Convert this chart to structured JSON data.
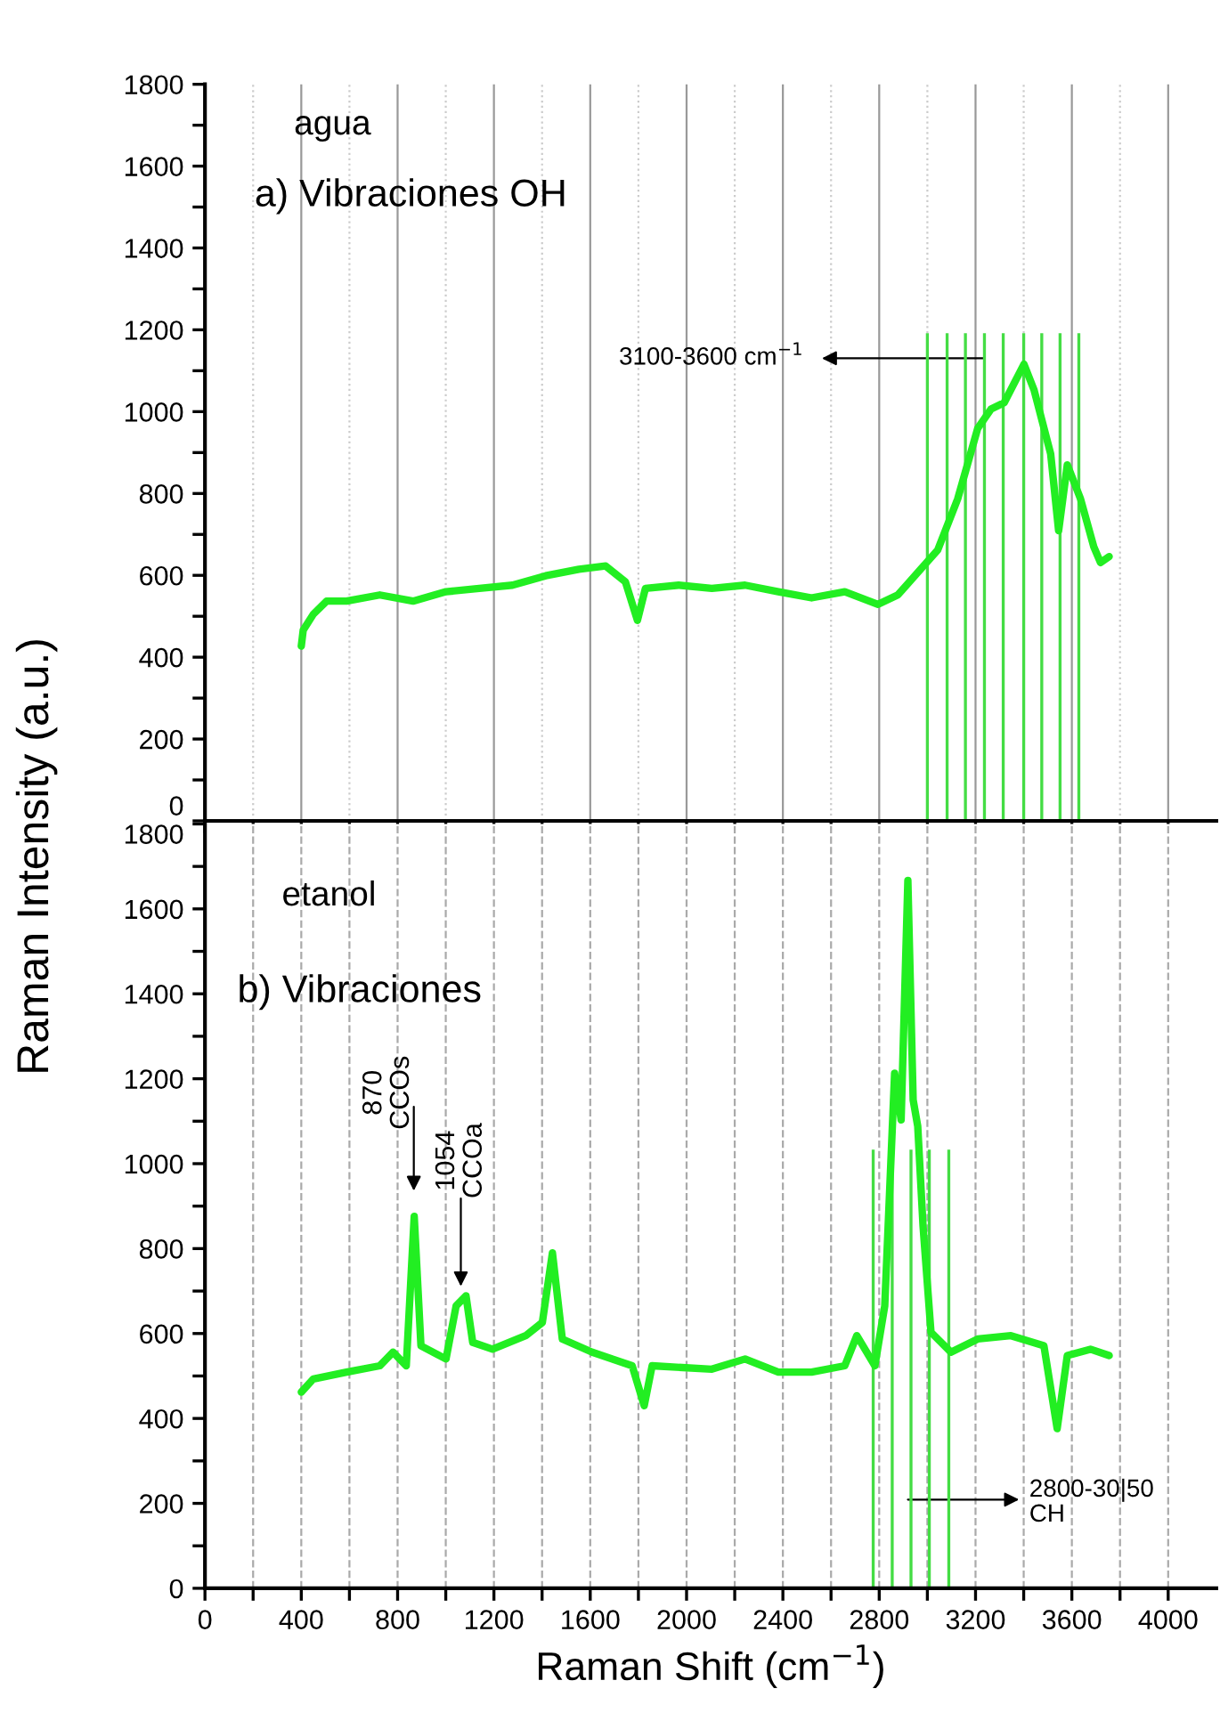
{
  "chart_data": [
    {
      "type": "line",
      "ylabel": "Raman Intensity (a.u.)",
      "annotations": [
        "agua",
        "a) Vibraciones OH",
        "3100-3600 cm$^{−1}$"
      ],
      "x": [
        400,
        408,
        450,
        505,
        588,
        726,
        864,
        1001,
        1139,
        1277,
        1415,
        1553,
        1664,
        1746,
        1796,
        1829,
        1967,
        2105,
        2243,
        2381,
        2519,
        2657,
        2795,
        2877,
        2960,
        3043,
        3126,
        3209,
        3264,
        3319,
        3401,
        3443,
        3512,
        3545,
        3581,
        3636,
        3691,
        3719,
        3755
      ],
      "series": [
        {
          "color": "#22ee22",
          "values": [
            427,
            466,
            505,
            537,
            537,
            552,
            537,
            560,
            568,
            576,
            599,
            615,
            623,
            584,
            490,
            568,
            576,
            568,
            576,
            560,
            545,
            560,
            529,
            552,
            607,
            662,
            787,
            959,
            1006,
            1022,
            1116,
            1053,
            897,
            709,
            870,
            787,
            670,
            631,
            646
          ]
        }
      ],
      "xlim": [
        0,
        4200
      ],
      "ylim": [
        0,
        1800
      ],
      "xticks": [
        0,
        {
          "value": 200,
          "label": null
        },
        400,
        {
          "value": 600,
          "label": null
        },
        800,
        {
          "value": 1000,
          "label": null
        },
        1200,
        {
          "value": 1400,
          "label": null
        },
        1600,
        {
          "value": 1800,
          "label": null
        },
        2000,
        {
          "value": 2200,
          "label": null
        },
        2400,
        {
          "value": 2600,
          "label": null
        },
        2800,
        {
          "value": 3000,
          "label": null
        },
        3200,
        {
          "value": 3400,
          "label": null
        },
        3600,
        {
          "value": 3800,
          "label": null
        },
        4000
      ],
      "yticks": [
        0,
        {
          "value": 100,
          "label": null
        },
        200,
        {
          "value": 300,
          "label": null
        },
        400,
        {
          "value": 500,
          "label": null
        },
        600,
        {
          "value": 700,
          "label": null
        },
        800,
        {
          "value": 900,
          "label": null
        },
        1000,
        {
          "value": 1100,
          "label": null
        },
        1200,
        {
          "value": 1300,
          "label": null
        },
        1400,
        {
          "value": 1500,
          "label": null
        },
        1600,
        {
          "value": 1700,
          "label": null
        },
        1800
      ],
      "tick_labels": "y",
      "grid": "x",
      "ref_lines": [
        {
          "axis": "x",
          "value": 3000,
          "color": "#44dd44"
        },
        {
          "axis": "x",
          "value": 3082,
          "color": "#44dd44"
        },
        {
          "axis": "x",
          "value": 3158,
          "color": "#44dd44"
        },
        {
          "axis": "x",
          "value": 3237,
          "color": "#44dd44"
        },
        {
          "axis": "x",
          "value": 3315,
          "color": "#44dd44"
        },
        {
          "axis": "x",
          "value": 3400,
          "color": "#44dd44"
        },
        {
          "axis": "x",
          "value": 3475,
          "color": "#44dd44"
        },
        {
          "axis": "x",
          "value": 3551,
          "color": "#44dd44"
        },
        {
          "axis": "x",
          "value": 3629,
          "color": "#44dd44"
        }
      ]
    },
    {
      "type": "line",
      "xlabel": "Raman Shift (cm$^{−1}$)",
      "annotations": [
        "etanol",
        "b) Vibraciones",
        "870\nCCOs",
        "1054\nCCOa",
        "2800-30|50\nCH"
      ],
      "x": [
        400,
        450,
        588,
        726,
        781,
        836,
        869,
        897,
        1001,
        1043,
        1084,
        1112,
        1194,
        1332,
        1401,
        1443,
        1484,
        1608,
        1774,
        1824,
        1857,
        2105,
        2243,
        2381,
        2519,
        2657,
        2707,
        2782,
        2823,
        2864,
        2891,
        2919,
        2941,
        2960,
        2982,
        3015,
        3098,
        3209,
        3347,
        3484,
        3539,
        3581,
        3677,
        3755
      ],
      "series": [
        {
          "color": "#22ee22",
          "values": [
            462,
            493,
            509,
            524,
            556,
            524,
            876,
            571,
            540,
            665,
            689,
            579,
            563,
            595,
            626,
            790,
            587,
            556,
            524,
            430,
            524,
            516,
            540,
            509,
            509,
            524,
            595,
            524,
            665,
            1213,
            1103,
            1667,
            1150,
            1088,
            853,
            603,
            556,
            587,
            595,
            571,
            376,
            548,
            563,
            548
          ]
        }
      ],
      "xlim": [
        0,
        4200
      ],
      "ylim": [
        0,
        1800
      ],
      "xticks": [
        0,
        {
          "value": 200,
          "label": null
        },
        400,
        {
          "value": 600,
          "label": null
        },
        800,
        {
          "value": 1000,
          "label": null
        },
        1200,
        {
          "value": 1400,
          "label": null
        },
        1600,
        {
          "value": 1800,
          "label": null
        },
        2000,
        {
          "value": 2200,
          "label": null
        },
        2400,
        {
          "value": 2600,
          "label": null
        },
        2800,
        {
          "value": 3000,
          "label": null
        },
        3200,
        {
          "value": 3400,
          "label": null
        },
        3600,
        {
          "value": 3800,
          "label": null
        },
        4000
      ],
      "yticks": [
        0,
        {
          "value": 100,
          "label": null
        },
        200,
        {
          "value": 300,
          "label": null
        },
        400,
        {
          "value": 500,
          "label": null
        },
        600,
        {
          "value": 700,
          "label": null
        },
        800,
        {
          "value": 900,
          "label": null
        },
        1000,
        {
          "value": 1100,
          "label": null
        },
        1200,
        {
          "value": 1300,
          "label": null
        },
        1400,
        {
          "value": 1500,
          "label": null
        },
        1600,
        {
          "value": 1700,
          "label": null
        },
        1800
      ],
      "grid": "x",
      "ref_lines": [
        {
          "axis": "x",
          "value": 2775,
          "color": "#44dd44"
        },
        {
          "axis": "x",
          "value": 2854,
          "color": "#44dd44"
        },
        {
          "axis": "x",
          "value": 2932,
          "color": "#44dd44"
        },
        {
          "axis": "x",
          "value": 3008,
          "color": "#44dd44"
        },
        {
          "axis": "x",
          "value": 3089,
          "color": "#44dd44"
        }
      ]
    }
  ]
}
